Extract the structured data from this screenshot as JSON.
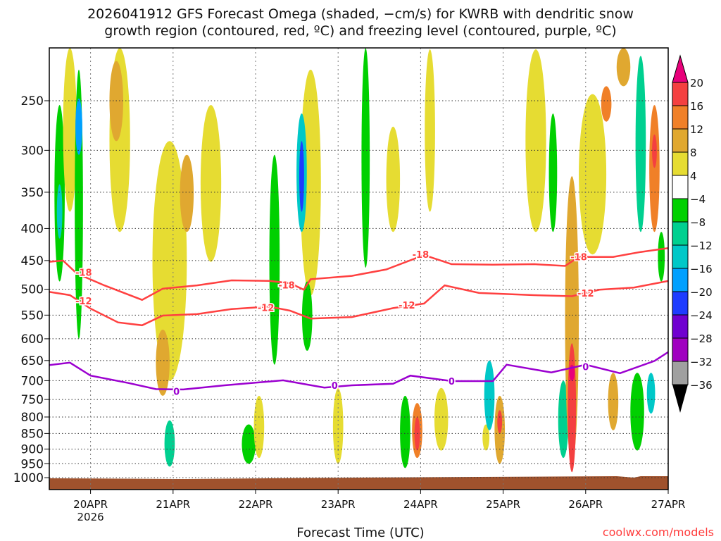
{
  "chart_data": {
    "type": "heatmap",
    "title_line1": "2026041912 GFS Forecast Omega (shaded, −cm/s) for KWRB with dendritic snow",
    "title_line2": "growth region (contoured, red, ºC) and freezing level (contoured, purple, ºC)",
    "xlabel": "Forecast Time (UTC)",
    "ylabel": "",
    "credit": "coolwx.com/models",
    "x_unit": "hours since 2026-04-19 12Z",
    "xlim": [
      0,
      180
    ],
    "ylim_pressure_mb": [
      206,
      1000
    ],
    "x_ticks": [
      {
        "hour": 12,
        "label": "20APR",
        "sub": "2026"
      },
      {
        "hour": 36,
        "label": "21APR"
      },
      {
        "hour": 60,
        "label": "22APR"
      },
      {
        "hour": 84,
        "label": "23APR"
      },
      {
        "hour": 108,
        "label": "24APR"
      },
      {
        "hour": 132,
        "label": "25APR"
      },
      {
        "hour": 156,
        "label": "26APR"
      },
      {
        "hour": 180,
        "label": "27APR"
      }
    ],
    "y_ticks": [
      "250",
      "300",
      "350",
      "400",
      "450",
      "500",
      "550",
      "600",
      "650",
      "700",
      "750",
      "800",
      "850",
      "900",
      "950",
      "1000"
    ],
    "colorbar": {
      "labels": [
        "20",
        "16",
        "12",
        "8",
        "4",
        "−4",
        "−8",
        "−12",
        "−16",
        "−20",
        "−24",
        "−28",
        "−32",
        "−36"
      ],
      "top_color": "#e8007a",
      "bottom_color": "#000000",
      "colors": [
        "#f44040",
        "#f08028",
        "#e0a830",
        "#e6dc32",
        "#ffffff",
        "#00d000",
        "#00d090",
        "#00c8c8",
        "#00a0ff",
        "#1e3cff",
        "#7000d0",
        "#a000c0",
        "#a0a0a0"
      ]
    },
    "ground_color": "#a0522d",
    "omega_regions": [
      [
        3,
        254,
        486,
        1.5,
        -6
      ],
      [
        3,
        340,
        415,
        0.8,
        -14
      ],
      [
        6,
        206,
        376,
        2,
        6
      ],
      [
        8.6,
        223,
        600,
        1.2,
        -6
      ],
      [
        8.6,
        248,
        305,
        1,
        -18
      ],
      [
        20.5,
        206,
        405,
        3,
        6
      ],
      [
        19.5,
        216,
        290,
        2,
        10
      ],
      [
        35,
        290,
        700,
        5,
        6
      ],
      [
        40,
        305,
        405,
        2,
        12
      ],
      [
        33,
        580,
        740,
        2,
        12
      ],
      [
        35,
        810,
        960,
        1.5,
        -8
      ],
      [
        47,
        254,
        452,
        3,
        6
      ],
      [
        58,
        822,
        950,
        2,
        -6
      ],
      [
        61,
        740,
        930,
        1.5,
        6
      ],
      [
        65.5,
        305,
        660,
        1.5,
        -6
      ],
      [
        76,
        223,
        512,
        3,
        6
      ],
      [
        73.4,
        262,
        405,
        1.5,
        -14
      ],
      [
        73.4,
        290,
        376,
        0.7,
        -20
      ],
      [
        75,
        486,
        627,
        1.5,
        -6
      ],
      [
        84,
        720,
        950,
        1.5,
        6
      ],
      [
        92,
        206,
        462,
        1.2,
        -6
      ],
      [
        100,
        275,
        405,
        2,
        6
      ],
      [
        103.5,
        740,
        965,
        1.5,
        -6
      ],
      [
        107,
        760,
        930,
        1.5,
        14
      ],
      [
        107,
        800,
        905,
        0.8,
        18
      ],
      [
        114,
        719,
        905,
        2,
        6
      ],
      [
        110.7,
        207,
        376,
        1.5,
        6
      ],
      [
        127,
        822,
        905,
        1,
        6
      ],
      [
        128,
        650,
        840,
        1.5,
        -14
      ],
      [
        131,
        740,
        950,
        1.5,
        10
      ],
      [
        131,
        780,
        850,
        0.7,
        18
      ],
      [
        141.5,
        207,
        405,
        3,
        6
      ],
      [
        146.5,
        262,
        405,
        1.2,
        -6
      ],
      [
        149.5,
        700,
        930,
        1.5,
        -10
      ],
      [
        158,
        244,
        440,
        4,
        6
      ],
      [
        152,
        330,
        950,
        2,
        10
      ],
      [
        152,
        610,
        980,
        1.2,
        18
      ],
      [
        152,
        660,
        700,
        0.8,
        22
      ],
      [
        162,
        237,
        270,
        1.5,
        14
      ],
      [
        164,
        680,
        840,
        1.5,
        12
      ],
      [
        167,
        206,
        237,
        2,
        12
      ],
      [
        171,
        680,
        905,
        2,
        -6
      ],
      [
        172,
        212,
        405,
        1.5,
        -10
      ],
      [
        176,
        254,
        405,
        1.5,
        14
      ],
      [
        176,
        283,
        320,
        0.7,
        18
      ],
      [
        175,
        680,
        790,
        1.2,
        -12
      ],
      [
        178,
        405,
        486,
        1,
        -6
      ]
    ],
    "contours": [
      {
        "name": "dgz-minus18",
        "color": "#ff4040",
        "label": "-18",
        "points": [
          [
            0,
            452
          ],
          [
            4,
            450
          ],
          [
            8,
            472
          ],
          [
            16,
            493
          ],
          [
            27,
            520
          ],
          [
            33,
            499
          ],
          [
            43,
            493
          ],
          [
            53,
            484
          ],
          [
            64,
            485
          ],
          [
            70,
            489
          ],
          [
            74,
            501
          ],
          [
            76,
            482
          ],
          [
            88,
            476
          ],
          [
            98,
            465
          ],
          [
            109,
            441
          ],
          [
            117,
            456
          ],
          [
            129,
            457
          ],
          [
            141,
            456
          ],
          [
            150,
            459
          ],
          [
            154,
            444
          ],
          [
            164,
            444
          ],
          [
            172,
            436
          ],
          [
            180,
            430
          ]
        ],
        "label_at": [
          [
            10,
            470
          ],
          [
            69,
            492
          ],
          [
            108,
            440
          ],
          [
            154,
            444
          ]
        ]
      },
      {
        "name": "dgz-minus12",
        "color": "#ff4040",
        "label": "-12",
        "points": [
          [
            0,
            505
          ],
          [
            6,
            511
          ],
          [
            12,
            537
          ],
          [
            20,
            565
          ],
          [
            27,
            571
          ],
          [
            33,
            551
          ],
          [
            43,
            548
          ],
          [
            53,
            538
          ],
          [
            64,
            533
          ],
          [
            70,
            541
          ],
          [
            76,
            557
          ],
          [
            88,
            554
          ],
          [
            100,
            536
          ],
          [
            109,
            527
          ],
          [
            115,
            493
          ],
          [
            125,
            507
          ],
          [
            141,
            511
          ],
          [
            152,
            513
          ],
          [
            160,
            501
          ],
          [
            170,
            497
          ],
          [
            180,
            485
          ]
        ],
        "label_at": [
          [
            10,
            522
          ],
          [
            63,
            535
          ],
          [
            104,
            530
          ],
          [
            156,
            507
          ]
        ]
      },
      {
        "name": "freezing-level",
        "color": "#9b00d0",
        "label": "0",
        "points": [
          [
            0,
            661
          ],
          [
            6,
            655
          ],
          [
            12,
            687
          ],
          [
            23,
            706
          ],
          [
            31,
            722
          ],
          [
            39,
            723
          ],
          [
            51,
            712
          ],
          [
            68,
            699
          ],
          [
            80,
            718
          ],
          [
            88,
            712
          ],
          [
            100,
            708
          ],
          [
            105,
            687
          ],
          [
            117,
            701
          ],
          [
            129,
            701
          ],
          [
            133,
            660
          ],
          [
            146,
            679
          ],
          [
            156,
            660
          ],
          [
            166,
            681
          ],
          [
            176,
            651
          ],
          [
            180,
            630
          ]
        ],
        "label_at": [
          [
            37,
            728
          ],
          [
            83,
            712
          ],
          [
            117,
            701
          ],
          [
            156,
            665
          ]
        ]
      }
    ]
  }
}
